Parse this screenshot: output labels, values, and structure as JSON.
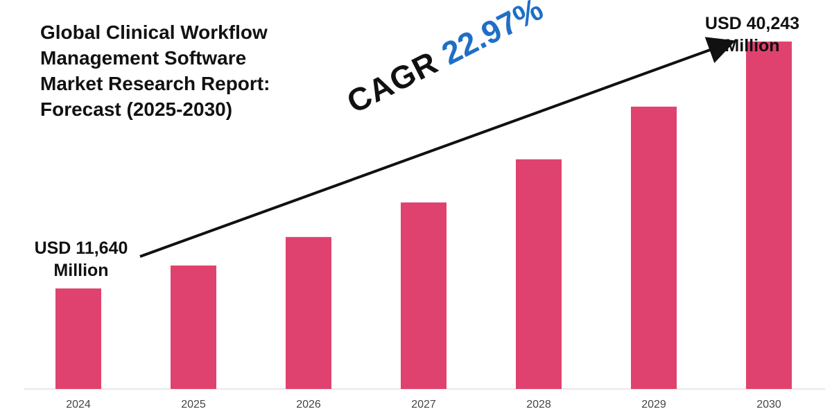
{
  "title_lines": [
    "Global Clinical Workflow",
    "Management Software",
    "Market Research Report:",
    "Forecast (2025-2030)"
  ],
  "start_label": {
    "line1": "USD 11,640",
    "line2": "Million"
  },
  "end_label": {
    "line1": "USD 40,243",
    "line2": "Million"
  },
  "cagr": {
    "word": "CAGR",
    "value": "22.97%"
  },
  "colors": {
    "bar": "#e0426f",
    "cagr_value": "#1f6fc5",
    "text": "#111111",
    "axis": "#d0d0d0",
    "tick_text": "#444444"
  },
  "chart_data": {
    "type": "bar",
    "title": "Global Clinical Workflow Management Software Market Research Report: Forecast (2025-2030)",
    "categories": [
      "2024",
      "2025",
      "2026",
      "2027",
      "2028",
      "2029",
      "2030"
    ],
    "values": [
      11640,
      14300,
      17600,
      21600,
      26600,
      32700,
      40243
    ],
    "xlabel": "",
    "ylabel": "",
    "ylim": [
      0,
      42000
    ],
    "grid": false,
    "legend": "none",
    "annotations": [
      "USD 11,640 Million",
      "USD 40,243 Million",
      "CAGR 22.97%"
    ]
  }
}
